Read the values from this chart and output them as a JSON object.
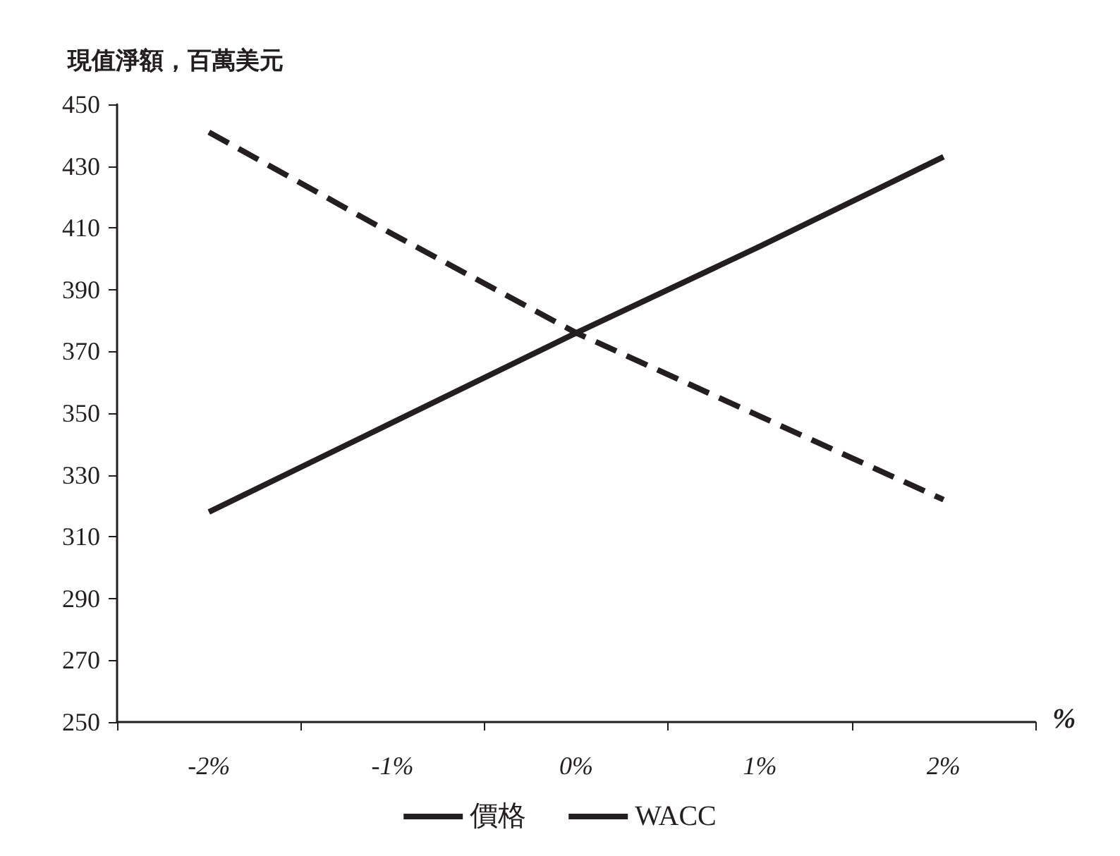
{
  "chart_data": {
    "type": "line",
    "ylabel": "現值淨額，百萬美元",
    "xlabel": "%",
    "categories": [
      "-2%",
      "-1%",
      "0%",
      "1%",
      "2%"
    ],
    "series": [
      {
        "name": "價格",
        "color": "#231f20",
        "values": [
          318,
          347,
          376,
          404,
          433
        ],
        "line_style": "solid"
      },
      {
        "name": "WACC",
        "color": "#231f20",
        "values": [
          441,
          408,
          376,
          349,
          322
        ],
        "line_style": "dashed"
      }
    ],
    "ylim": [
      250,
      450
    ],
    "yticks": [
      250,
      270,
      290,
      310,
      330,
      350,
      370,
      390,
      410,
      430,
      450
    ],
    "grid": false,
    "legend": "bottom",
    "marker": "none"
  }
}
